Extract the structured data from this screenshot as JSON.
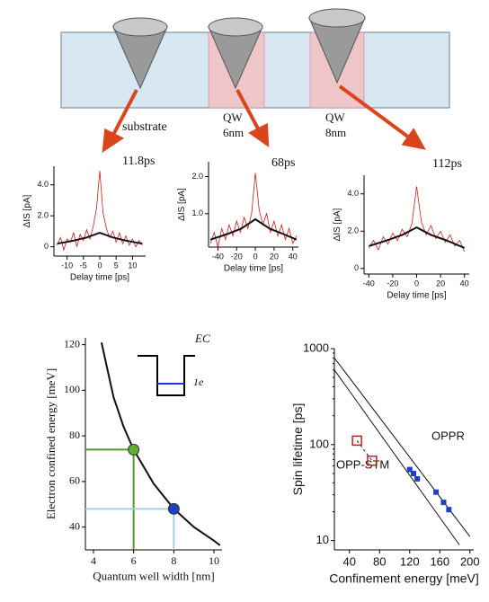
{
  "diagram": {
    "labels": [
      "substrate",
      "QW",
      "6nm",
      "QW",
      "8nm"
    ]
  },
  "chart_data": [
    {
      "type": "line",
      "xlabel": "Delay time [ps]",
      "ylabel": "ΔIS [pA]",
      "annotations": [
        "11.8ps"
      ],
      "xlim": [
        -14,
        14
      ],
      "xticks": [
        -10,
        -5,
        0,
        5,
        10
      ],
      "ylim": [
        -0.6,
        5.2
      ],
      "yticks": [
        0,
        {
          "value": 2,
          "label": "2.0"
        },
        {
          "value": 4,
          "label": "4.0"
        }
      ],
      "series": [
        {
          "color": "#d21a1a",
          "width": 0.8,
          "x": [
            -13,
            -12,
            -11,
            -10,
            -9,
            -8,
            -7,
            -6,
            -5,
            -4,
            -3,
            -2,
            -1,
            0,
            1,
            2,
            3,
            4,
            5,
            6,
            7,
            8,
            9,
            10,
            11,
            12,
            13
          ],
          "values": [
            0.1,
            0.6,
            -0.2,
            0.5,
            0.3,
            0.9,
            0.0,
            0.8,
            0.4,
            1.1,
            0.5,
            1.3,
            2.5,
            4.9,
            2.2,
            1.2,
            0.6,
            1.0,
            0.3,
            0.9,
            0.2,
            0.7,
            0.1,
            0.5,
            0.0,
            0.4,
            0.1
          ]
        },
        {
          "color": "#111111",
          "width": 2,
          "x": [
            -13,
            -8,
            -4,
            0,
            4,
            8,
            13
          ],
          "values": [
            0.2,
            0.4,
            0.6,
            0.9,
            0.6,
            0.4,
            0.2
          ]
        }
      ]
    },
    {
      "type": "line",
      "xlabel": "Delay time [ps]",
      "ylabel": "ΔIS [pA]",
      "annotations": [
        "68ps"
      ],
      "xlim": [
        -50,
        46
      ],
      "xticks": [
        -40,
        -20,
        0,
        20,
        40
      ],
      "ylim": [
        0.1,
        2.4
      ],
      "yticks": [
        {
          "value": 1,
          "label": "1.0"
        },
        {
          "value": 2,
          "label": "2.0"
        }
      ],
      "series": [
        {
          "color": "#d21a1a",
          "width": 0.8,
          "x": [
            -48,
            -44,
            -40,
            -36,
            -32,
            -28,
            -24,
            -20,
            -16,
            -12,
            -8,
            -4,
            0,
            4,
            8,
            12,
            16,
            20,
            24,
            28,
            32,
            36,
            40,
            44
          ],
          "values": [
            0.2,
            0.5,
            0.1,
            0.6,
            0.3,
            0.7,
            0.4,
            0.8,
            0.5,
            0.9,
            0.6,
            1.0,
            2.1,
            1.1,
            0.7,
            1.0,
            0.5,
            0.8,
            0.4,
            0.7,
            0.3,
            0.6,
            0.2,
            0.4
          ]
        },
        {
          "color": "#111111",
          "width": 2,
          "x": [
            -48,
            -30,
            -15,
            0,
            15,
            30,
            44
          ],
          "values": [
            0.3,
            0.45,
            0.6,
            0.85,
            0.6,
            0.45,
            0.3
          ]
        }
      ]
    },
    {
      "type": "line",
      "xlabel": "Delay time [ps]",
      "ylabel": "ΔIS [pA]",
      "annotations": [
        "112ps"
      ],
      "xlim": [
        -44,
        44
      ],
      "xticks": [
        -40,
        -20,
        0,
        20,
        40
      ],
      "ylim": [
        -0.3,
        5
      ],
      "yticks": [
        0,
        {
          "value": 2,
          "label": "2.0"
        },
        {
          "value": 4,
          "label": "4.0"
        }
      ],
      "series": [
        {
          "color": "#d21a1a",
          "width": 0.8,
          "x": [
            -40,
            -36,
            -32,
            -28,
            -24,
            -20,
            -16,
            -12,
            -8,
            -4,
            0,
            4,
            8,
            12,
            16,
            20,
            24,
            28,
            32,
            36,
            40
          ],
          "values": [
            1.1,
            1.5,
            1.0,
            1.7,
            1.3,
            1.9,
            1.5,
            2.1,
            1.7,
            2.4,
            4.4,
            2.5,
            1.8,
            2.3,
            1.6,
            2.0,
            1.4,
            1.8,
            1.2,
            1.5,
            0.9
          ]
        },
        {
          "color": "#111111",
          "width": 2,
          "x": [
            -40,
            -25,
            -12,
            0,
            12,
            25,
            40
          ],
          "values": [
            1.2,
            1.5,
            1.8,
            2.2,
            1.8,
            1.5,
            1.1
          ]
        }
      ]
    },
    {
      "type": "line",
      "xlabel": "Quantum well width [nm]",
      "ylabel": "Electron confined energy [meV]",
      "annotations": [
        "EC",
        "1e"
      ],
      "xlim": [
        3.6,
        10.4
      ],
      "xticks": [
        4,
        6,
        8,
        10
      ],
      "ylim": [
        30,
        123
      ],
      "yticks": [
        40,
        60,
        80,
        100,
        120
      ],
      "series": [
        {
          "color": "#111111",
          "width": 2,
          "x": [
            4.4,
            5,
            5.5,
            6,
            7,
            8,
            9,
            10,
            10.3
          ],
          "values": [
            121,
            97,
            84,
            74,
            59,
            48,
            40,
            34,
            32
          ]
        },
        {
          "color": "#5fae3b",
          "marker": "circle",
          "guides": "#4e9a2e",
          "x": [
            6
          ],
          "values": [
            74
          ]
        },
        {
          "color": "#1f3fc8",
          "marker": "circle",
          "guides": "#a7cfe0",
          "x": [
            8
          ],
          "values": [
            48
          ]
        }
      ]
    },
    {
      "type": "line",
      "xlabel": "Confinement energy [meV]",
      "ylabel": "Spin lifetime [ps]",
      "annotations": [
        "OPPR",
        "OPP-STM"
      ],
      "log_y": true,
      "xlim": [
        20,
        205
      ],
      "xticks": [
        40,
        80,
        120,
        160,
        200
      ],
      "ylim": [
        8,
        1000
      ],
      "yticks": [
        10,
        100,
        1000
      ],
      "series": [
        {
          "color": "#111111",
          "width": 1,
          "x": [
            20,
            200
          ],
          "values": [
            800,
            11
          ]
        },
        {
          "color": "#111111",
          "width": 1,
          "x": [
            20,
            186
          ],
          "values": [
            600,
            9
          ]
        },
        {
          "color": "#1f3fc8",
          "marker": "square",
          "x": [
            120,
            125,
            130,
            155,
            165,
            172
          ],
          "values": [
            55,
            50,
            44,
            32,
            25,
            21
          ]
        },
        {
          "color": "#d21a1a",
          "marker": "hollow-square",
          "dash": true,
          "x": [
            50,
            70
          ],
          "values": [
            110,
            68
          ]
        }
      ]
    }
  ]
}
